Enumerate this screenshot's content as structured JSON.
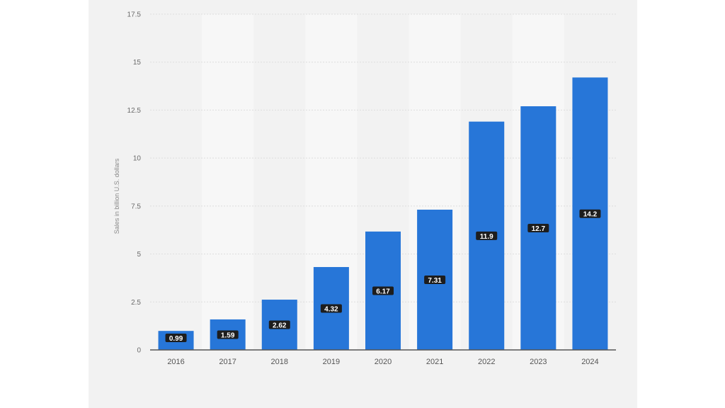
{
  "chart_data": {
    "type": "bar",
    "categories": [
      "2016",
      "2017",
      "2018",
      "2019",
      "2020",
      "2021",
      "2022",
      "2023",
      "2024"
    ],
    "values": [
      0.99,
      1.59,
      2.62,
      4.32,
      6.17,
      7.31,
      11.9,
      12.7,
      14.2
    ],
    "data_labels": [
      "0.99",
      "1.59",
      "2.62",
      "4.32",
      "6.17",
      "7.31",
      "11.9",
      "12.7",
      "14.2"
    ],
    "title": "",
    "xlabel": "",
    "ylabel": "Sales in billion U.S. dollars",
    "ylim": [
      0,
      17.5
    ],
    "yticks": [
      "0",
      "2.5",
      "5",
      "7.5",
      "10",
      "12.5",
      "15",
      "17.5"
    ],
    "grid": true,
    "colors": {
      "bar": "#2776d8",
      "band": "#f7f7f7",
      "grid": "#dddddd",
      "axis": "#555555"
    }
  }
}
